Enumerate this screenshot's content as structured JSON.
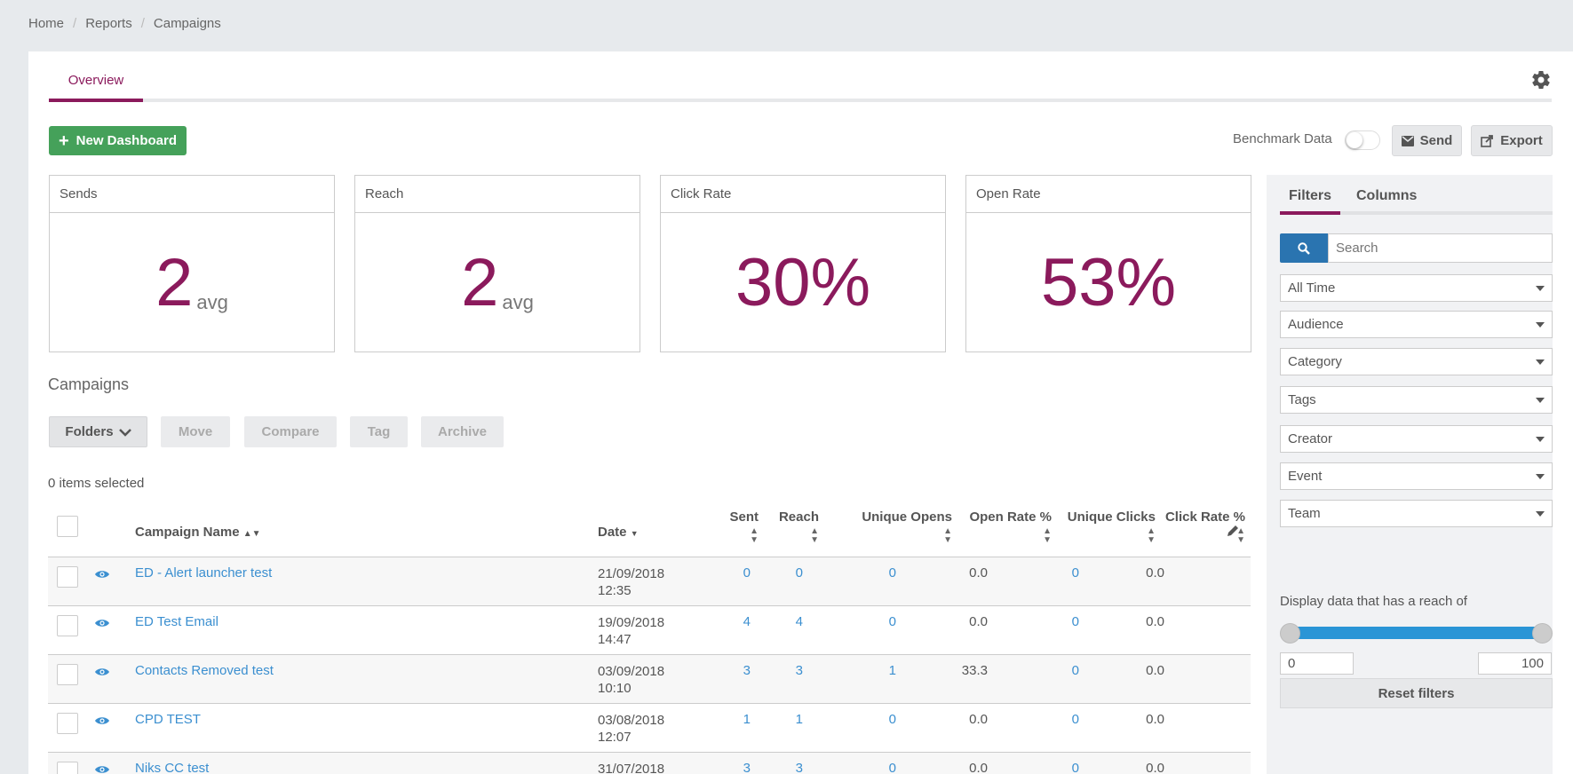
{
  "breadcrumb": [
    "Home",
    "Reports",
    "Campaigns"
  ],
  "breadcrumb_sep": "/",
  "tabs": {
    "overview": "Overview"
  },
  "toolbar": {
    "new_dashboard": "New Dashboard",
    "benchmark_label": "Benchmark Data",
    "benchmark_on": false,
    "send": "Send",
    "export": "Export"
  },
  "stats": [
    {
      "title": "Sends",
      "value": "2",
      "unit": "avg"
    },
    {
      "title": "Reach",
      "value": "2",
      "unit": "avg"
    },
    {
      "title": "Click Rate",
      "value": "30%",
      "unit": ""
    },
    {
      "title": "Open Rate",
      "value": "53%",
      "unit": ""
    }
  ],
  "campaigns": {
    "title": "Campaigns",
    "actions": {
      "folders": "Folders",
      "move": "Move",
      "compare": "Compare",
      "tag": "Tag",
      "archive": "Archive"
    },
    "selected_text": "0 items selected",
    "columns": {
      "name": "Campaign Name",
      "date": "Date",
      "sent": "Sent",
      "reach": "Reach",
      "unique_opens": "Unique Opens",
      "open_rate": "Open Rate %",
      "unique_clicks": "Unique Clicks",
      "click_rate": "Click Rate %"
    },
    "rows": [
      {
        "name": "ED - Alert launcher test",
        "date": "21/09/2018",
        "time": "12:35",
        "sent": "0",
        "reach": "0",
        "opens": "0",
        "open_rate": "0.0",
        "clicks": "0",
        "click_rate": "0.0"
      },
      {
        "name": "ED Test Email",
        "date": "19/09/2018",
        "time": "14:47",
        "sent": "4",
        "reach": "4",
        "opens": "0",
        "open_rate": "0.0",
        "clicks": "0",
        "click_rate": "0.0"
      },
      {
        "name": "Contacts Removed test",
        "date": "03/09/2018",
        "time": "10:10",
        "sent": "3",
        "reach": "3",
        "opens": "1",
        "open_rate": "33.3",
        "clicks": "0",
        "click_rate": "0.0"
      },
      {
        "name": "CPD TEST",
        "date": "03/08/2018",
        "time": "12:07",
        "sent": "1",
        "reach": "1",
        "opens": "0",
        "open_rate": "0.0",
        "clicks": "0",
        "click_rate": "0.0"
      },
      {
        "name": "Niks CC test",
        "date": "31/07/2018",
        "time": "",
        "sent": "3",
        "reach": "3",
        "opens": "0",
        "open_rate": "0.0",
        "clicks": "0",
        "click_rate": "0.0"
      }
    ]
  },
  "sidebar": {
    "tabs": {
      "filters": "Filters",
      "columns": "Columns"
    },
    "search_placeholder": "Search",
    "dropdowns": [
      "All Time",
      "Audience",
      "Category",
      "Tags",
      "Creator",
      "Event",
      "Team"
    ],
    "reach_label": "Display data that has a reach of",
    "reach_min": "0",
    "reach_max": "100",
    "reset": "Reset filters"
  },
  "colors": {
    "accent": "#8b1a5c",
    "primary": "#45a15a",
    "link": "#3b8fd0",
    "slider": "#2a95d6"
  }
}
